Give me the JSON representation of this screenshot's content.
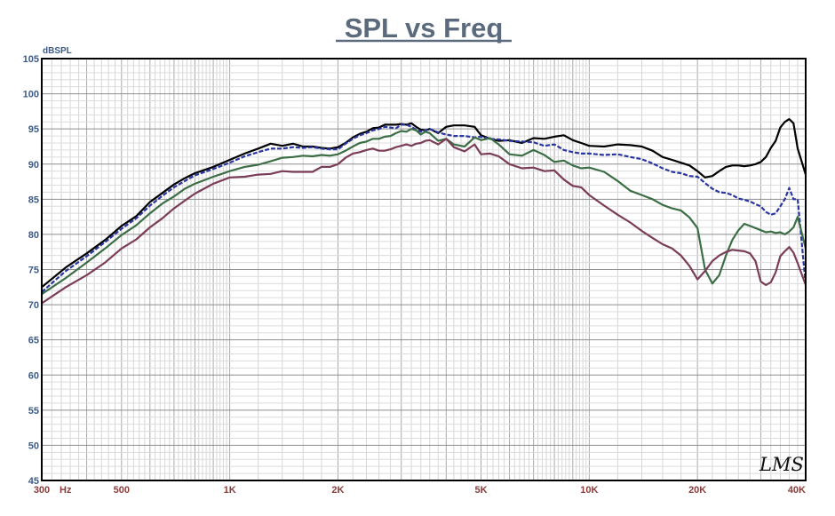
{
  "chart_data": {
    "type": "line",
    "title": "SPL vs Freq",
    "ylabel": "dBSPL",
    "xlabel": "",
    "x_scale": "log",
    "xlim": [
      300,
      40000
    ],
    "ylim": [
      45,
      105
    ],
    "y_ticks": [
      45,
      50,
      55,
      60,
      65,
      70,
      75,
      80,
      85,
      90,
      95,
      100,
      105
    ],
    "x_tick_labels": [
      {
        "value": 300,
        "label": "300"
      },
      {
        "value": 500,
        "label": "500"
      },
      {
        "value": 1000,
        "label": "1K"
      },
      {
        "value": 2000,
        "label": "2K"
      },
      {
        "value": 5000,
        "label": "5K"
      },
      {
        "value": 10000,
        "label": "10K"
      },
      {
        "value": 20000,
        "label": "20K"
      },
      {
        "value": 40000,
        "label": "40K"
      }
    ],
    "x_unit_label": "Hz",
    "grid": true,
    "watermark": "LMS",
    "series": [
      {
        "color": "#000000",
        "style": "solid",
        "x": [
          300,
          350,
          400,
          450,
          500,
          550,
          600,
          650,
          700,
          750,
          800,
          900,
          1000,
          1100,
          1200,
          1300,
          1400,
          1500,
          1600,
          1700,
          1800,
          1900,
          2000,
          2100,
          2200,
          2300,
          2400,
          2500,
          2600,
          2700,
          2800,
          2900,
          3000,
          3100,
          3200,
          3300,
          3400,
          3500,
          3600,
          3800,
          4000,
          4200,
          4500,
          4800,
          5000,
          5300,
          5600,
          6000,
          6500,
          7000,
          7500,
          8000,
          8500,
          9000,
          9500,
          10000,
          11000,
          12000,
          13000,
          14000,
          15000,
          16000,
          17000,
          18000,
          19000,
          20000,
          21000,
          22000,
          23000,
          24000,
          25000,
          26000,
          27000,
          28000,
          29000,
          30000,
          31000,
          32000,
          33000,
          34000,
          35000,
          36000,
          37000,
          38000,
          40000
        ],
        "y": [
          72.5,
          75.3,
          77.3,
          79.2,
          81.2,
          82.6,
          84.6,
          85.9,
          87.1,
          88.0,
          88.7,
          89.6,
          90.6,
          91.5,
          92.2,
          92.9,
          92.6,
          92.9,
          92.5,
          92.5,
          92.3,
          92.2,
          92.4,
          93.0,
          93.8,
          94.3,
          94.6,
          95.1,
          95.2,
          95.6,
          95.6,
          95.6,
          95.7,
          95.6,
          95.8,
          95.3,
          94.9,
          94.8,
          95.0,
          94.4,
          95.3,
          95.5,
          95.5,
          95.3,
          94.1,
          93.6,
          93.3,
          93.4,
          93.0,
          93.7,
          93.6,
          93.9,
          94.1,
          93.4,
          93.0,
          92.6,
          92.5,
          92.8,
          92.7,
          92.5,
          91.9,
          91.0,
          90.6,
          90.2,
          89.8,
          89.0,
          88.1,
          88.3,
          89.0,
          89.6,
          89.8,
          89.8,
          89.7,
          89.8,
          90.0,
          90.3,
          91.0,
          92.3,
          93.3,
          95.2,
          96.0,
          96.4,
          95.8,
          92.2,
          88.5
        ]
      },
      {
        "color": "#2a36a0",
        "style": "dashed",
        "x": [
          300,
          350,
          400,
          450,
          500,
          550,
          600,
          650,
          700,
          750,
          800,
          900,
          1000,
          1100,
          1200,
          1300,
          1400,
          1500,
          1600,
          1700,
          1800,
          1900,
          2000,
          2100,
          2200,
          2300,
          2400,
          2500,
          2600,
          2700,
          2800,
          2900,
          3000,
          3100,
          3200,
          3300,
          3400,
          3500,
          3600,
          3800,
          4000,
          4200,
          4500,
          4800,
          5000,
          5300,
          5600,
          6000,
          6500,
          7000,
          7500,
          8000,
          8500,
          9000,
          9500,
          10000,
          11000,
          12000,
          13000,
          14000,
          15000,
          16000,
          17000,
          18000,
          19000,
          20000,
          21000,
          22000,
          23000,
          24000,
          25000,
          26000,
          27000,
          28000,
          29000,
          30000,
          31000,
          32000,
          33000,
          34000,
          35000,
          36000,
          37000,
          38000,
          40000
        ],
        "y": [
          71.8,
          74.8,
          76.9,
          78.9,
          80.8,
          82.3,
          84.1,
          85.5,
          86.7,
          87.6,
          88.4,
          89.3,
          90.2,
          91.1,
          91.7,
          92.2,
          92.2,
          92.4,
          92.3,
          92.4,
          92.2,
          92.1,
          92.1,
          92.9,
          93.6,
          94.1,
          94.4,
          94.8,
          95.0,
          95.3,
          95.2,
          95.1,
          95.6,
          95.6,
          95.3,
          94.9,
          94.6,
          94.8,
          95.0,
          94.5,
          94.2,
          94.0,
          94.0,
          93.8,
          93.9,
          93.6,
          93.5,
          93.3,
          93.2,
          93.1,
          92.6,
          92.8,
          92.0,
          91.7,
          91.5,
          91.5,
          91.3,
          91.4,
          91.0,
          90.7,
          90.1,
          89.4,
          88.9,
          88.7,
          88.3,
          88.2,
          87.3,
          86.5,
          86.0,
          85.9,
          85.6,
          85.1,
          84.9,
          84.7,
          84.3,
          84.0,
          83.2,
          82.8,
          83.0,
          84.0,
          85.0,
          86.6,
          85.0,
          85.0,
          72.8
        ]
      },
      {
        "color": "#3c6e46",
        "style": "solid",
        "x": [
          300,
          350,
          400,
          450,
          500,
          550,
          600,
          650,
          700,
          750,
          800,
          900,
          1000,
          1100,
          1200,
          1300,
          1400,
          1500,
          1600,
          1700,
          1800,
          1900,
          2000,
          2100,
          2200,
          2300,
          2400,
          2500,
          2600,
          2700,
          2800,
          2900,
          3000,
          3100,
          3200,
          3300,
          3400,
          3500,
          3600,
          3800,
          4000,
          4200,
          4500,
          4800,
          5000,
          5300,
          5600,
          6000,
          6500,
          7000,
          7500,
          8000,
          8500,
          9000,
          9500,
          10000,
          11000,
          12000,
          13000,
          14000,
          15000,
          16000,
          17000,
          18000,
          19000,
          20000,
          21000,
          22000,
          23000,
          24000,
          25000,
          26000,
          27000,
          28000,
          29000,
          30000,
          31000,
          32000,
          33000,
          34000,
          35000,
          36000,
          37000,
          38000,
          40000
        ],
        "y": [
          71.5,
          73.8,
          76.0,
          78.0,
          79.9,
          81.3,
          83.0,
          84.4,
          85.4,
          86.5,
          87.2,
          88.2,
          89.0,
          89.6,
          89.9,
          90.4,
          90.9,
          91.0,
          91.2,
          91.1,
          91.3,
          91.2,
          91.4,
          91.9,
          92.5,
          93.0,
          93.2,
          93.6,
          93.6,
          93.9,
          94.0,
          94.4,
          94.7,
          94.6,
          95.0,
          94.8,
          94.2,
          94.6,
          94.4,
          93.3,
          93.6,
          92.8,
          92.5,
          93.8,
          93.4,
          93.7,
          92.8,
          91.4,
          91.2,
          92.0,
          91.3,
          90.3,
          90.5,
          89.8,
          89.4,
          89.5,
          88.9,
          87.6,
          86.2,
          85.6,
          85.0,
          84.2,
          83.7,
          83.4,
          82.4,
          80.9,
          75.0,
          73.0,
          74.2,
          77.0,
          79.2,
          80.6,
          81.5,
          81.2,
          80.9,
          80.6,
          80.3,
          80.4,
          80.2,
          80.3,
          80.0,
          80.4,
          81.0,
          82.5,
          78.0
        ]
      },
      {
        "color": "#7a3c56",
        "style": "solid",
        "x": [
          300,
          350,
          400,
          450,
          500,
          550,
          600,
          650,
          700,
          750,
          800,
          900,
          1000,
          1100,
          1200,
          1300,
          1400,
          1500,
          1600,
          1700,
          1800,
          1900,
          2000,
          2100,
          2200,
          2300,
          2400,
          2500,
          2600,
          2700,
          2800,
          2900,
          3000,
          3100,
          3200,
          3300,
          3400,
          3500,
          3600,
          3800,
          4000,
          4200,
          4500,
          4800,
          5000,
          5300,
          5600,
          6000,
          6500,
          7000,
          7500,
          8000,
          8500,
          9000,
          9500,
          10000,
          11000,
          12000,
          13000,
          14000,
          15000,
          16000,
          17000,
          18000,
          19000,
          20000,
          21000,
          22000,
          23000,
          24000,
          25000,
          26000,
          27000,
          28000,
          29000,
          30000,
          31000,
          32000,
          33000,
          34000,
          35000,
          36000,
          37000,
          38000,
          40000
        ],
        "y": [
          70.2,
          72.5,
          74.2,
          76.0,
          78.0,
          79.3,
          81.0,
          82.3,
          83.7,
          84.8,
          85.8,
          87.2,
          88.1,
          88.2,
          88.5,
          88.6,
          89.0,
          88.9,
          88.9,
          88.9,
          89.6,
          89.6,
          90.0,
          90.9,
          91.5,
          91.7,
          92.0,
          92.2,
          91.9,
          91.9,
          92.1,
          92.4,
          92.6,
          92.8,
          92.6,
          92.9,
          93.0,
          93.3,
          93.4,
          92.8,
          93.6,
          92.4,
          91.8,
          92.8,
          91.4,
          91.5,
          91.1,
          90.0,
          89.4,
          89.5,
          89.0,
          89.1,
          87.8,
          86.9,
          86.7,
          85.6,
          84.1,
          82.8,
          81.7,
          80.5,
          79.5,
          78.6,
          78.0,
          77.0,
          75.5,
          73.6,
          74.8,
          76.2,
          77.0,
          77.5,
          77.8,
          77.7,
          77.6,
          77.3,
          76.2,
          73.3,
          72.8,
          73.2,
          74.6,
          76.9,
          77.6,
          78.2,
          77.4,
          75.9,
          72.8
        ]
      }
    ]
  }
}
